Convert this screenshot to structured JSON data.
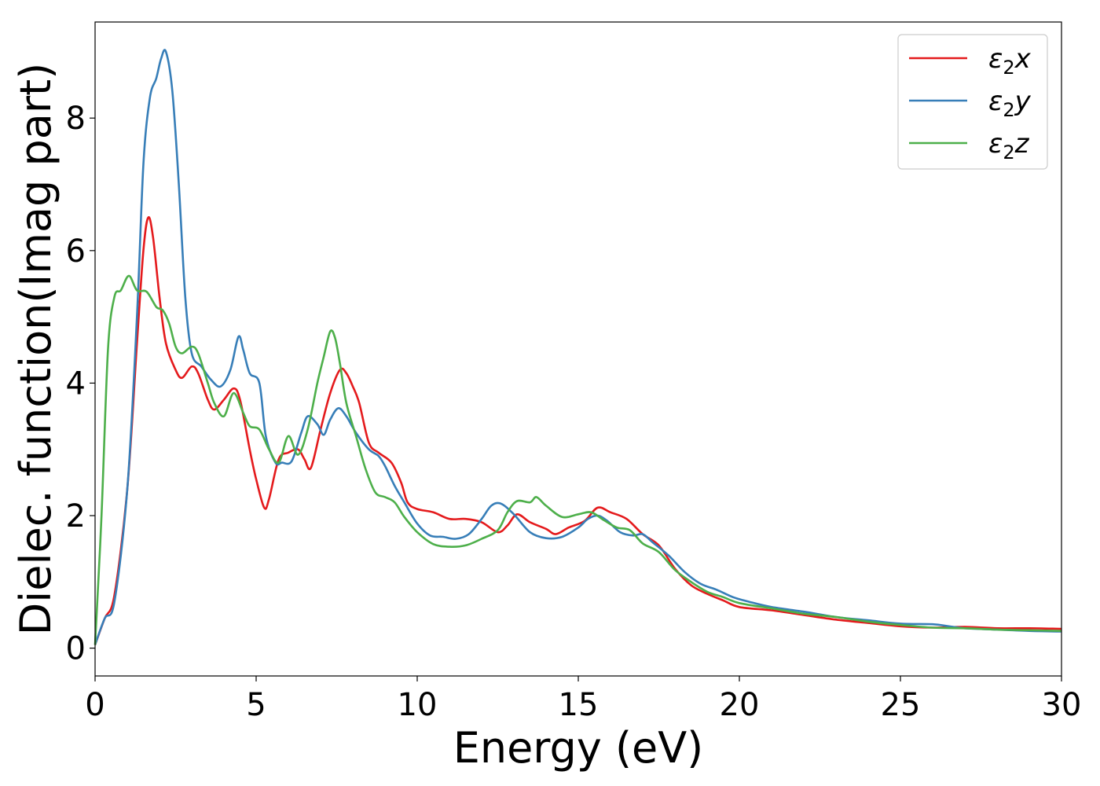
{
  "chart_data": {
    "type": "line",
    "xlabel": "Energy (eV)",
    "ylabel": "Dielec. function(Imag part)",
    "xlim": [
      0,
      30
    ],
    "ylim": [
      -0.42,
      9.45
    ],
    "xticks": [
      0,
      5,
      10,
      15,
      20,
      25,
      30
    ],
    "yticks": [
      0,
      2,
      4,
      6,
      8
    ],
    "grid": false,
    "legend_position": "top-right",
    "series": [
      {
        "name": "ε2x",
        "label_base": "ε",
        "label_sub": "2",
        "label_var": "x",
        "color": "#e41a1c",
        "points": [
          [
            0,
            0.05
          ],
          [
            0.3,
            0.45
          ],
          [
            0.6,
            0.8
          ],
          [
            1.0,
            2.4
          ],
          [
            1.3,
            4.6
          ],
          [
            1.5,
            6.0
          ],
          [
            1.65,
            6.5
          ],
          [
            1.8,
            6.2
          ],
          [
            2.0,
            5.3
          ],
          [
            2.2,
            4.6
          ],
          [
            2.5,
            4.2
          ],
          [
            2.7,
            4.08
          ],
          [
            3.0,
            4.25
          ],
          [
            3.2,
            4.15
          ],
          [
            3.5,
            3.75
          ],
          [
            3.7,
            3.6
          ],
          [
            4.0,
            3.75
          ],
          [
            4.3,
            3.92
          ],
          [
            4.5,
            3.75
          ],
          [
            4.8,
            3.0
          ],
          [
            5.0,
            2.55
          ],
          [
            5.25,
            2.12
          ],
          [
            5.4,
            2.25
          ],
          [
            5.7,
            2.85
          ],
          [
            6.0,
            2.95
          ],
          [
            6.3,
            3.0
          ],
          [
            6.5,
            2.85
          ],
          [
            6.7,
            2.72
          ],
          [
            7.0,
            3.3
          ],
          [
            7.3,
            3.85
          ],
          [
            7.6,
            4.2
          ],
          [
            7.8,
            4.15
          ],
          [
            8.0,
            3.95
          ],
          [
            8.2,
            3.7
          ],
          [
            8.5,
            3.1
          ],
          [
            8.8,
            2.95
          ],
          [
            9.2,
            2.8
          ],
          [
            9.5,
            2.5
          ],
          [
            9.7,
            2.2
          ],
          [
            10.0,
            2.1
          ],
          [
            10.5,
            2.05
          ],
          [
            11.0,
            1.95
          ],
          [
            11.5,
            1.95
          ],
          [
            12.0,
            1.9
          ],
          [
            12.5,
            1.75
          ],
          [
            12.8,
            1.85
          ],
          [
            13.1,
            2.02
          ],
          [
            13.5,
            1.9
          ],
          [
            14.0,
            1.8
          ],
          [
            14.3,
            1.72
          ],
          [
            14.7,
            1.82
          ],
          [
            15.2,
            1.92
          ],
          [
            15.6,
            2.12
          ],
          [
            16.0,
            2.05
          ],
          [
            16.5,
            1.95
          ],
          [
            17.0,
            1.72
          ],
          [
            17.5,
            1.55
          ],
          [
            18.0,
            1.2
          ],
          [
            18.5,
            0.95
          ],
          [
            19.0,
            0.82
          ],
          [
            19.5,
            0.72
          ],
          [
            20.0,
            0.62
          ],
          [
            21.0,
            0.57
          ],
          [
            22.0,
            0.5
          ],
          [
            23.0,
            0.43
          ],
          [
            24.0,
            0.38
          ],
          [
            25.0,
            0.33
          ],
          [
            26.0,
            0.31
          ],
          [
            27.0,
            0.32
          ],
          [
            28.0,
            0.3
          ],
          [
            29.0,
            0.3
          ],
          [
            30.0,
            0.29
          ]
        ]
      },
      {
        "name": "ε2y",
        "label_base": "ε",
        "label_sub": "2",
        "label_var": "y",
        "color": "#377eb8",
        "points": [
          [
            0,
            0.05
          ],
          [
            0.3,
            0.45
          ],
          [
            0.6,
            0.7
          ],
          [
            1.0,
            2.4
          ],
          [
            1.3,
            5.0
          ],
          [
            1.5,
            7.3
          ],
          [
            1.7,
            8.3
          ],
          [
            1.9,
            8.6
          ],
          [
            2.05,
            8.9
          ],
          [
            2.2,
            9.0
          ],
          [
            2.4,
            8.4
          ],
          [
            2.6,
            7.0
          ],
          [
            2.8,
            5.3
          ],
          [
            3.0,
            4.45
          ],
          [
            3.3,
            4.25
          ],
          [
            3.6,
            4.05
          ],
          [
            3.9,
            3.95
          ],
          [
            4.2,
            4.2
          ],
          [
            4.45,
            4.7
          ],
          [
            4.6,
            4.5
          ],
          [
            4.8,
            4.15
          ],
          [
            5.1,
            4.0
          ],
          [
            5.3,
            3.2
          ],
          [
            5.6,
            2.8
          ],
          [
            5.8,
            2.8
          ],
          [
            6.1,
            2.82
          ],
          [
            6.4,
            3.25
          ],
          [
            6.6,
            3.5
          ],
          [
            6.9,
            3.38
          ],
          [
            7.1,
            3.22
          ],
          [
            7.3,
            3.45
          ],
          [
            7.55,
            3.62
          ],
          [
            7.8,
            3.5
          ],
          [
            8.1,
            3.25
          ],
          [
            8.5,
            3.0
          ],
          [
            8.8,
            2.9
          ],
          [
            9.0,
            2.75
          ],
          [
            9.3,
            2.45
          ],
          [
            9.6,
            2.2
          ],
          [
            10.0,
            1.88
          ],
          [
            10.4,
            1.7
          ],
          [
            10.8,
            1.68
          ],
          [
            11.2,
            1.65
          ],
          [
            11.6,
            1.72
          ],
          [
            12.0,
            1.95
          ],
          [
            12.3,
            2.15
          ],
          [
            12.6,
            2.18
          ],
          [
            13.0,
            2.02
          ],
          [
            13.5,
            1.75
          ],
          [
            14.0,
            1.66
          ],
          [
            14.5,
            1.68
          ],
          [
            15.0,
            1.82
          ],
          [
            15.3,
            1.95
          ],
          [
            15.6,
            2.0
          ],
          [
            15.9,
            1.92
          ],
          [
            16.3,
            1.75
          ],
          [
            16.7,
            1.7
          ],
          [
            17.0,
            1.72
          ],
          [
            17.3,
            1.6
          ],
          [
            17.8,
            1.4
          ],
          [
            18.3,
            1.15
          ],
          [
            18.8,
            0.97
          ],
          [
            19.3,
            0.88
          ],
          [
            19.8,
            0.77
          ],
          [
            20.3,
            0.7
          ],
          [
            21.0,
            0.62
          ],
          [
            22.0,
            0.55
          ],
          [
            23.0,
            0.47
          ],
          [
            24.0,
            0.42
          ],
          [
            25.0,
            0.37
          ],
          [
            26.0,
            0.36
          ],
          [
            26.5,
            0.33
          ],
          [
            27.0,
            0.3
          ],
          [
            28.0,
            0.28
          ],
          [
            29.0,
            0.26
          ],
          [
            30.0,
            0.25
          ]
        ]
      },
      {
        "name": "ε2z",
        "label_base": "ε",
        "label_sub": "2",
        "label_var": "z",
        "color": "#4daf4a",
        "points": [
          [
            0,
            0.05
          ],
          [
            0.2,
            2.0
          ],
          [
            0.4,
            4.5
          ],
          [
            0.6,
            5.3
          ],
          [
            0.8,
            5.4
          ],
          [
            1.05,
            5.62
          ],
          [
            1.3,
            5.4
          ],
          [
            1.6,
            5.38
          ],
          [
            1.9,
            5.15
          ],
          [
            2.1,
            5.1
          ],
          [
            2.3,
            4.9
          ],
          [
            2.5,
            4.55
          ],
          [
            2.7,
            4.45
          ],
          [
            3.0,
            4.55
          ],
          [
            3.2,
            4.45
          ],
          [
            3.5,
            4.0
          ],
          [
            3.7,
            3.7
          ],
          [
            4.0,
            3.5
          ],
          [
            4.3,
            3.85
          ],
          [
            4.6,
            3.55
          ],
          [
            4.8,
            3.35
          ],
          [
            5.1,
            3.3
          ],
          [
            5.4,
            3.0
          ],
          [
            5.7,
            2.8
          ],
          [
            6.0,
            3.2
          ],
          [
            6.3,
            2.92
          ],
          [
            6.6,
            3.3
          ],
          [
            6.9,
            4.0
          ],
          [
            7.1,
            4.4
          ],
          [
            7.3,
            4.78
          ],
          [
            7.45,
            4.68
          ],
          [
            7.6,
            4.3
          ],
          [
            7.8,
            3.7
          ],
          [
            8.1,
            3.2
          ],
          [
            8.4,
            2.7
          ],
          [
            8.7,
            2.35
          ],
          [
            9.0,
            2.28
          ],
          [
            9.3,
            2.2
          ],
          [
            9.6,
            1.98
          ],
          [
            10.0,
            1.75
          ],
          [
            10.5,
            1.57
          ],
          [
            11.0,
            1.53
          ],
          [
            11.5,
            1.55
          ],
          [
            12.0,
            1.65
          ],
          [
            12.5,
            1.78
          ],
          [
            12.8,
            2.05
          ],
          [
            13.1,
            2.22
          ],
          [
            13.5,
            2.2
          ],
          [
            13.7,
            2.28
          ],
          [
            14.0,
            2.15
          ],
          [
            14.5,
            1.98
          ],
          [
            15.0,
            2.02
          ],
          [
            15.4,
            2.05
          ],
          [
            15.8,
            1.93
          ],
          [
            16.2,
            1.82
          ],
          [
            16.6,
            1.78
          ],
          [
            17.0,
            1.58
          ],
          [
            17.5,
            1.45
          ],
          [
            18.0,
            1.18
          ],
          [
            18.5,
            1.0
          ],
          [
            19.0,
            0.85
          ],
          [
            19.5,
            0.77
          ],
          [
            20.0,
            0.68
          ],
          [
            21.0,
            0.6
          ],
          [
            22.0,
            0.52
          ],
          [
            23.0,
            0.47
          ],
          [
            24.0,
            0.4
          ],
          [
            25.0,
            0.35
          ],
          [
            26.0,
            0.31
          ],
          [
            27.0,
            0.3
          ],
          [
            28.0,
            0.28
          ],
          [
            29.0,
            0.27
          ],
          [
            30.0,
            0.26
          ]
        ]
      }
    ]
  }
}
